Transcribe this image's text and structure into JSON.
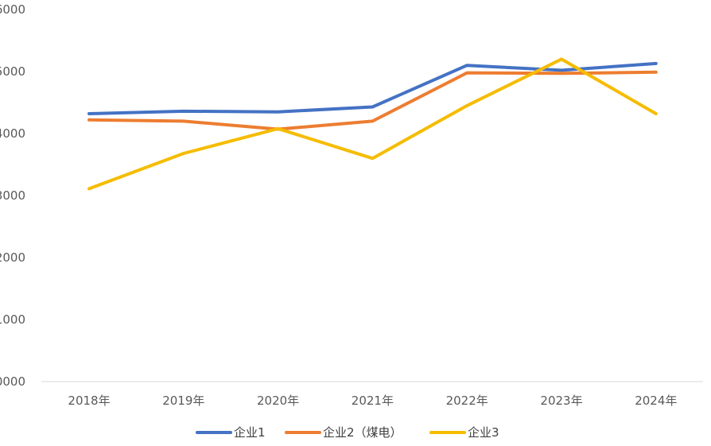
{
  "chart_data": {
    "type": "line",
    "title": "",
    "xlabel": "",
    "ylabel": "",
    "categories": [
      "2018年",
      "2019年",
      "2020年",
      "2021年",
      "2022年",
      "2023年",
      "2024年"
    ],
    "y_tick_labels": [
      "0000",
      "1000",
      "2000",
      "3000",
      "4000",
      "5000",
      "6000"
    ],
    "ylim": [
      0,
      6
    ],
    "grid": false,
    "legend_position": "bottom",
    "series": [
      {
        "name": "企业1",
        "color": "#4472C4",
        "values": [
          4.32,
          4.36,
          4.35,
          4.43,
          5.1,
          5.02,
          5.13
        ]
      },
      {
        "name": "企业2（煤电）",
        "color": "#ED7D31",
        "values": [
          4.22,
          4.2,
          4.07,
          4.2,
          4.98,
          4.97,
          4.99
        ]
      },
      {
        "name": "企业3",
        "color": "#F5BC00",
        "values": [
          3.11,
          3.68,
          4.08,
          3.6,
          4.45,
          5.2,
          4.32
        ]
      }
    ]
  }
}
